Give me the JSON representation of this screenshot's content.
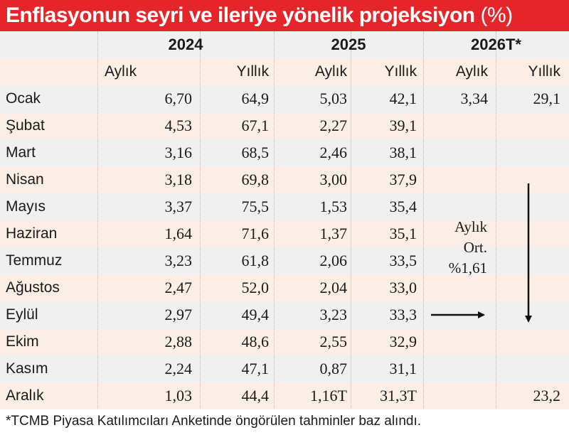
{
  "title": "Enflasyonun seyri ve ileriye yönelik projeksiyon",
  "title_unit": "(%)",
  "years": [
    "2024",
    "2025",
    "2026T*"
  ],
  "subheaders": [
    "Aylık",
    "Yıllık"
  ],
  "annotation_lines": [
    "Aylık",
    "Ort.",
    "%1,61"
  ],
  "footnote": "*TCMB Piyasa Katılımcıları Anketinde öngörülen tahminler baz alındı.",
  "colors": {
    "title_bg": "#e4262a",
    "band_peach": "#fbeee6",
    "band_gray": "#f0f0f0",
    "divider": "#e8a58a"
  },
  "chart_data": {
    "type": "table",
    "title": "Enflasyonun seyri ve ileriye yönelik projeksiyon (%)",
    "columns": [
      "",
      "2024 Aylık",
      "2024 Yıllık",
      "2025 Aylık",
      "2025 Yıllık",
      "2026T* Aylık",
      "2026T* Yıllık"
    ],
    "rows": [
      {
        "month": "Ocak",
        "cells": [
          "6,70",
          "64,9",
          "5,03",
          "42,1",
          "3,34",
          "29,1"
        ]
      },
      {
        "month": "Şubat",
        "cells": [
          "4,53",
          "67,1",
          "2,27",
          "39,1",
          "",
          ""
        ]
      },
      {
        "month": "Mart",
        "cells": [
          "3,16",
          "68,5",
          "2,46",
          "38,1",
          "",
          ""
        ]
      },
      {
        "month": "Nisan",
        "cells": [
          "3,18",
          "69,8",
          "3,00",
          "37,9",
          "",
          ""
        ]
      },
      {
        "month": "Mayıs",
        "cells": [
          "3,37",
          "75,5",
          "1,53",
          "35,4",
          "",
          ""
        ]
      },
      {
        "month": "Haziran",
        "cells": [
          "1,64",
          "71,6",
          "1,37",
          "35,1",
          "",
          ""
        ]
      },
      {
        "month": "Temmuz",
        "cells": [
          "3,23",
          "61,8",
          "2,06",
          "33,5",
          "",
          ""
        ]
      },
      {
        "month": "Ağustos",
        "cells": [
          "2,47",
          "52,0",
          "2,04",
          "33,0",
          "",
          ""
        ]
      },
      {
        "month": "Eylül",
        "cells": [
          "2,97",
          "49,4",
          "3,23",
          "33,3",
          "",
          ""
        ]
      },
      {
        "month": "Ekim",
        "cells": [
          "2,88",
          "48,6",
          "2,55",
          "32,9",
          "",
          ""
        ]
      },
      {
        "month": "Kasım",
        "cells": [
          "2,24",
          "47,1",
          "0,87",
          "31,1",
          "",
          ""
        ]
      },
      {
        "month": "Aralık",
        "cells": [
          "1,03",
          "44,4",
          "1,16T",
          "31,3T",
          "",
          "23,2"
        ]
      }
    ]
  }
}
